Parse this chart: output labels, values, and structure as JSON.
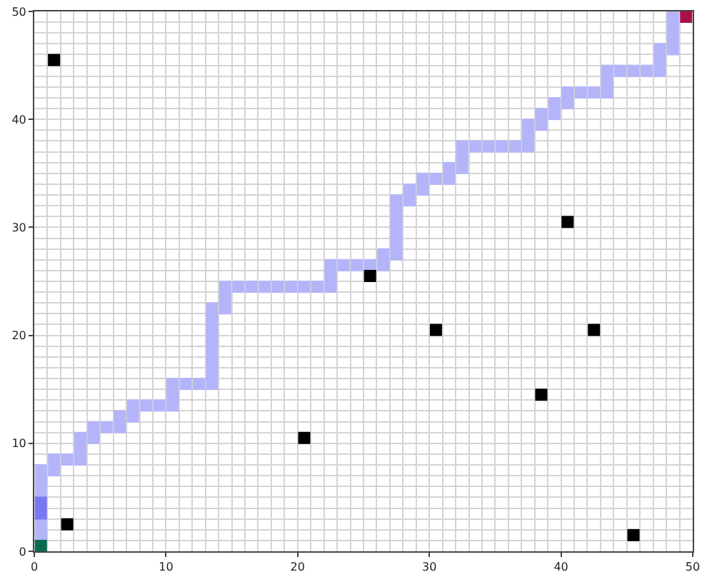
{
  "chart_data": {
    "type": "scatter",
    "marker": "square",
    "grid": true,
    "xlim": [
      0,
      50
    ],
    "ylim": [
      0,
      50
    ],
    "xticks": [
      0,
      10,
      20,
      30,
      40,
      50
    ],
    "yticks": [
      0,
      10,
      20,
      30,
      40,
      50
    ],
    "series": [
      {
        "color": "#b4b4fa",
        "x": [
          0.5,
          0.5,
          0.5,
          0.5,
          0.5,
          1.5,
          1.5,
          2.5,
          3.5,
          3.5,
          3.5,
          4.5,
          4.5,
          5.5,
          6.5,
          6.5,
          7.5,
          7.5,
          8.5,
          9.5,
          10.5,
          10.5,
          10.5,
          11.5,
          12.5,
          13.5,
          13.5,
          13.5,
          13.5,
          13.5,
          13.5,
          13.5,
          13.5,
          14.5,
          14.5,
          14.5,
          15.5,
          16.5,
          17.5,
          18.5,
          19.5,
          20.5,
          21.5,
          22.5,
          22.5,
          22.5,
          23.5,
          24.5,
          25.5,
          26.5,
          26.5,
          27.5,
          27.5,
          27.5,
          27.5,
          27.5,
          27.5,
          28.5,
          28.5,
          29.5,
          29.5,
          30.5,
          31.5,
          31.5,
          32.5,
          32.5,
          32.5,
          33.5,
          34.5,
          35.5,
          36.5,
          37.5,
          37.5,
          37.5,
          38.5,
          38.5,
          39.5,
          39.5,
          40.5,
          40.5,
          41.5,
          42.5,
          43.5,
          43.5,
          43.5,
          44.5,
          45.5,
          46.5,
          47.5,
          47.5,
          47.5,
          48.5,
          48.5,
          48.5,
          48.5
        ],
        "values": [
          1.5,
          2.5,
          5.5,
          6.5,
          7.5,
          7.5,
          8.5,
          8.5,
          8.5,
          9.5,
          10.5,
          10.5,
          11.5,
          11.5,
          11.5,
          12.5,
          12.5,
          13.5,
          13.5,
          13.5,
          13.5,
          14.5,
          15.5,
          15.5,
          15.5,
          15.5,
          16.5,
          17.5,
          18.5,
          19.5,
          20.5,
          21.5,
          22.5,
          22.5,
          23.5,
          24.5,
          24.5,
          24.5,
          24.5,
          24.5,
          24.5,
          24.5,
          24.5,
          24.5,
          25.5,
          26.5,
          26.5,
          26.5,
          26.5,
          26.5,
          27.5,
          27.5,
          28.5,
          29.5,
          30.5,
          31.5,
          32.5,
          32.5,
          33.5,
          33.5,
          34.5,
          34.5,
          34.5,
          35.5,
          35.5,
          36.5,
          37.5,
          37.5,
          37.5,
          37.5,
          37.5,
          37.5,
          38.5,
          39.5,
          39.5,
          40.5,
          40.5,
          41.5,
          41.5,
          42.5,
          42.5,
          42.5,
          42.5,
          43.5,
          44.5,
          44.5,
          44.5,
          44.5,
          44.5,
          45.5,
          46.5,
          46.5,
          47.5,
          48.5,
          49.5
        ]
      },
      {
        "color": "#7878f5",
        "x": [
          0.5,
          0.5
        ],
        "values": [
          3.5,
          4.5
        ]
      },
      {
        "color": "#000000",
        "x": [
          1.5,
          2.5,
          20.5,
          25.5,
          30.5,
          38.5,
          40.5,
          42.5,
          45.5
        ],
        "values": [
          45.5,
          2.5,
          10.5,
          25.5,
          20.5,
          14.5,
          30.5,
          20.5,
          1.5
        ]
      },
      {
        "color": "#0a6a50",
        "x": [
          0.5
        ],
        "values": [
          0.5
        ]
      },
      {
        "color": "#a8104a",
        "x": [
          49.5
        ],
        "values": [
          49.5
        ]
      }
    ]
  }
}
